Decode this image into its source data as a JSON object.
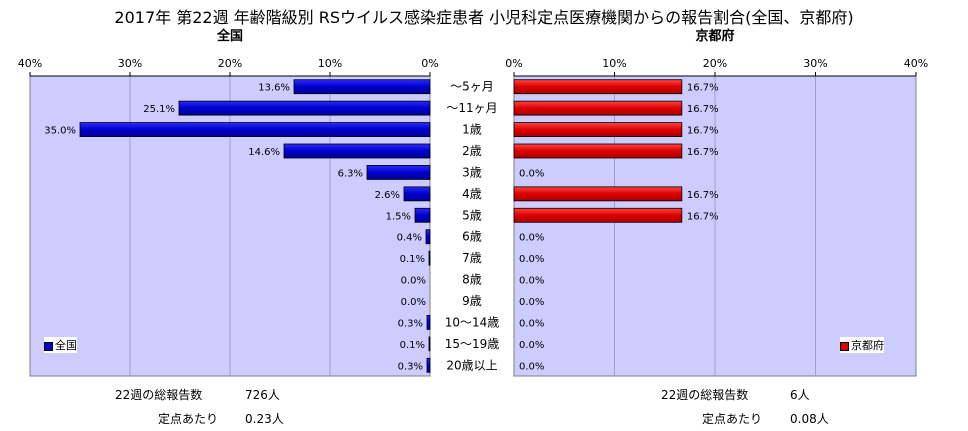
{
  "title": "2017年 第22週 年齢階級別 RSウイルス感染症患者 小児科定点医療機関からの報告割合(全国、京都府)",
  "colors": {
    "zenkoku": "#0000cc",
    "kyoto": "#dd0000",
    "plot_bg": "#ccccff",
    "grid": "#a0a0c0"
  },
  "chart_data": [
    {
      "type": "bar",
      "orientation": "horizontal",
      "title": "全国",
      "categories": [
        "～5ヶ月",
        "～11ヶ月",
        "1歳",
        "2歳",
        "3歳",
        "4歳",
        "5歳",
        "6歳",
        "7歳",
        "8歳",
        "9歳",
        "10～14歳",
        "15～19歳",
        "20歳以上"
      ],
      "series": [
        {
          "name": "全国",
          "values": [
            13.6,
            25.1,
            35.0,
            14.6,
            6.3,
            2.6,
            1.5,
            0.4,
            0.1,
            0.0,
            0.0,
            0.3,
            0.1,
            0.3
          ]
        }
      ],
      "value_labels": [
        "13.6%",
        "25.1%",
        "35.0%",
        "14.6%",
        "6.3%",
        "2.6%",
        "1.5%",
        "0.4%",
        "0.1%",
        "0.0%",
        "0.0%",
        "0.3%",
        "0.1%",
        "0.3%"
      ],
      "xlim": [
        0,
        40
      ],
      "ticks": [
        "40%",
        "30%",
        "20%",
        "10%",
        "0%"
      ],
      "reversed_axis": true,
      "grid": true,
      "legend": "bottom-left"
    },
    {
      "type": "bar",
      "orientation": "horizontal",
      "title": "京都府",
      "categories": [
        "～5ヶ月",
        "～11ヶ月",
        "1歳",
        "2歳",
        "3歳",
        "4歳",
        "5歳",
        "6歳",
        "7歳",
        "8歳",
        "9歳",
        "10～14歳",
        "15～19歳",
        "20歳以上"
      ],
      "series": [
        {
          "name": "京都府",
          "values": [
            16.7,
            16.7,
            16.7,
            16.7,
            0.0,
            16.7,
            16.7,
            0.0,
            0.0,
            0.0,
            0.0,
            0.0,
            0.0,
            0.0
          ]
        }
      ],
      "value_labels": [
        "16.7%",
        "16.7%",
        "16.7%",
        "16.7%",
        "0.0%",
        "16.7%",
        "16.7%",
        "0.0%",
        "0.0%",
        "0.0%",
        "0.0%",
        "0.0%",
        "0.0%",
        "0.0%"
      ],
      "xlim": [
        0,
        40
      ],
      "ticks": [
        "0%",
        "10%",
        "20%",
        "30%",
        "40%"
      ],
      "grid": true,
      "legend": "bottom-right"
    }
  ],
  "footer": {
    "left": {
      "total_label": "22週の総報告数",
      "total_value": "726人",
      "per_label": "定点あたり",
      "per_value": "0.23人"
    },
    "right": {
      "total_label": "22週の総報告数",
      "total_value": "6人",
      "per_label": "定点あたり",
      "per_value": "0.08人"
    }
  }
}
